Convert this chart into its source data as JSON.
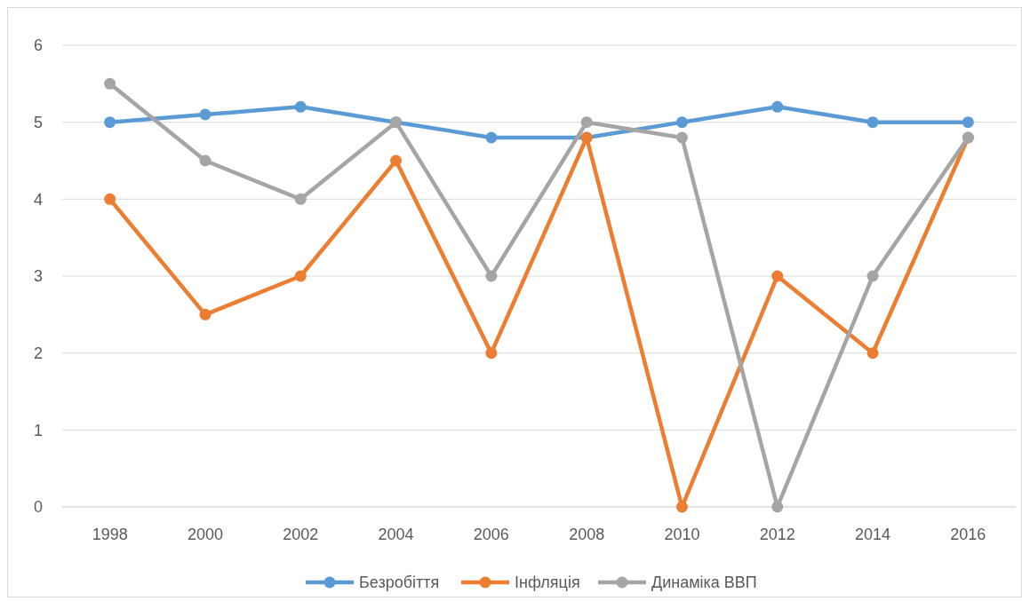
{
  "chart_data": {
    "type": "line",
    "categories": [
      "1998",
      "2000",
      "2002",
      "2004",
      "2006",
      "2008",
      "2010",
      "2012",
      "2014",
      "2016"
    ],
    "series": [
      {
        "name": "Безробіття",
        "color": "#5b9bd5",
        "values": [
          5,
          5.1,
          5.2,
          5,
          4.8,
          4.8,
          5,
          5.2,
          5,
          5
        ]
      },
      {
        "name": "Інфляція",
        "color": "#ed7d31",
        "values": [
          4,
          2.5,
          3,
          4.5,
          2,
          4.8,
          0,
          3,
          2,
          4.8
        ]
      },
      {
        "name": "Динаміка ВВП",
        "color": "#a5a5a5",
        "values": [
          5.5,
          4.5,
          4,
          5,
          3,
          5,
          4.8,
          0,
          3,
          4.8
        ]
      }
    ],
    "ylim": [
      0,
      6
    ],
    "yticks": [
      0,
      1,
      2,
      3,
      4,
      5,
      6
    ],
    "grid": "y",
    "legend": "bottom",
    "marker": "circle",
    "line_style": "solid"
  }
}
